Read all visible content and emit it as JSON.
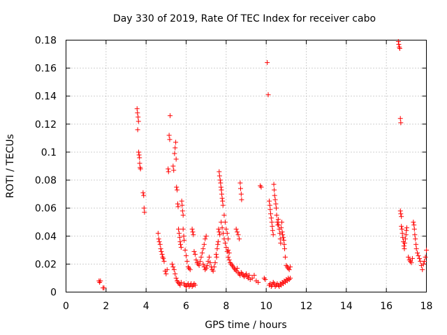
{
  "chart_data": {
    "type": "scatter",
    "title": "Day 330 of 2019, Rate Of TEC Index for receiver cabo",
    "xlabel": "GPS time / hours",
    "ylabel": "ROTI / TECUs",
    "xlim": [
      0,
      18
    ],
    "ylim": [
      0,
      0.18
    ],
    "x_ticks": [
      "0",
      "2",
      "4",
      "6",
      "8",
      "10",
      "12",
      "14",
      "16",
      "18"
    ],
    "y_ticks": [
      "0",
      "0.02",
      "0.04",
      "0.06",
      "0.08",
      "0.1",
      "0.12",
      "0.14",
      "0.16",
      "0.18"
    ],
    "grid": true,
    "marker": "+",
    "color": "#ff0000",
    "series": [
      {
        "points": [
          [
            1.65,
            0.008
          ],
          [
            1.68,
            0.007
          ],
          [
            1.72,
            0.008
          ],
          [
            1.85,
            0.003
          ],
          [
            1.9,
            0.003
          ],
          [
            3.55,
            0.131
          ],
          [
            3.57,
            0.128
          ],
          [
            3.6,
            0.125
          ],
          [
            3.62,
            0.122
          ],
          [
            3.58,
            0.116
          ],
          [
            3.63,
            0.1
          ],
          [
            3.65,
            0.098
          ],
          [
            3.67,
            0.096
          ],
          [
            3.68,
            0.092
          ],
          [
            3.7,
            0.089
          ],
          [
            3.72,
            0.088
          ],
          [
            3.85,
            0.071
          ],
          [
            3.88,
            0.069
          ],
          [
            3.9,
            0.06
          ],
          [
            3.92,
            0.057
          ],
          [
            4.6,
            0.042
          ],
          [
            4.63,
            0.038
          ],
          [
            4.66,
            0.036
          ],
          [
            4.7,
            0.034
          ],
          [
            4.73,
            0.031
          ],
          [
            4.76,
            0.029
          ],
          [
            4.8,
            0.027
          ],
          [
            4.83,
            0.025
          ],
          [
            4.86,
            0.024
          ],
          [
            4.9,
            0.022
          ],
          [
            4.95,
            0.015
          ],
          [
            5.0,
            0.013
          ],
          [
            5.05,
            0.016
          ],
          [
            5.1,
            0.088
          ],
          [
            5.12,
            0.086
          ],
          [
            5.15,
            0.112
          ],
          [
            5.18,
            0.109
          ],
          [
            5.2,
            0.126
          ],
          [
            5.3,
            0.02
          ],
          [
            5.35,
            0.018
          ],
          [
            5.4,
            0.016
          ],
          [
            5.45,
            0.013
          ],
          [
            5.5,
            0.01
          ],
          [
            5.55,
            0.008
          ],
          [
            5.6,
            0.007
          ],
          [
            5.65,
            0.006
          ],
          [
            5.7,
            0.005
          ],
          [
            5.75,
            0.007
          ],
          [
            5.35,
            0.09
          ],
          [
            5.38,
            0.087
          ],
          [
            5.42,
            0.099
          ],
          [
            5.45,
            0.103
          ],
          [
            5.48,
            0.107
          ],
          [
            5.5,
            0.095
          ],
          [
            5.52,
            0.075
          ],
          [
            5.55,
            0.073
          ],
          [
            5.58,
            0.063
          ],
          [
            5.6,
            0.061
          ],
          [
            5.62,
            0.045
          ],
          [
            5.65,
            0.042
          ],
          [
            5.68,
            0.039
          ],
          [
            5.7,
            0.036
          ],
          [
            5.72,
            0.034
          ],
          [
            5.75,
            0.032
          ],
          [
            5.78,
            0.065
          ],
          [
            5.8,
            0.062
          ],
          [
            5.82,
            0.058
          ],
          [
            5.85,
            0.055
          ],
          [
            5.85,
            0.045
          ],
          [
            5.88,
            0.04
          ],
          [
            5.9,
            0.037
          ],
          [
            5.95,
            0.03
          ],
          [
            6.0,
            0.026
          ],
          [
            6.05,
            0.022
          ],
          [
            6.1,
            0.018
          ],
          [
            6.15,
            0.017
          ],
          [
            6.2,
            0.016
          ],
          [
            5.9,
            0.006
          ],
          [
            5.95,
            0.005
          ],
          [
            6.0,
            0.004
          ],
          [
            6.05,
            0.005
          ],
          [
            6.1,
            0.006
          ],
          [
            6.15,
            0.004
          ],
          [
            6.2,
            0.005
          ],
          [
            6.25,
            0.006
          ],
          [
            6.3,
            0.004
          ],
          [
            6.35,
            0.005
          ],
          [
            6.4,
            0.006
          ],
          [
            6.45,
            0.005
          ],
          [
            6.3,
            0.045
          ],
          [
            6.33,
            0.043
          ],
          [
            6.36,
            0.041
          ],
          [
            6.4,
            0.029
          ],
          [
            6.45,
            0.027
          ],
          [
            6.5,
            0.023
          ],
          [
            6.55,
            0.021
          ],
          [
            6.6,
            0.02
          ],
          [
            6.65,
            0.019
          ],
          [
            6.7,
            0.022
          ],
          [
            6.75,
            0.025
          ],
          [
            6.8,
            0.028
          ],
          [
            6.85,
            0.031
          ],
          [
            6.9,
            0.034
          ],
          [
            6.95,
            0.038
          ],
          [
            7.0,
            0.04
          ],
          [
            6.85,
            0.02
          ],
          [
            6.9,
            0.018
          ],
          [
            6.95,
            0.016
          ],
          [
            7.0,
            0.017
          ],
          [
            7.05,
            0.019
          ],
          [
            7.1,
            0.022
          ],
          [
            7.15,
            0.025
          ],
          [
            7.2,
            0.021
          ],
          [
            7.25,
            0.018
          ],
          [
            7.3,
            0.016
          ],
          [
            7.35,
            0.015
          ],
          [
            7.4,
            0.018
          ],
          [
            7.45,
            0.021
          ],
          [
            7.5,
            0.027
          ],
          [
            7.52,
            0.025
          ],
          [
            7.55,
            0.031
          ],
          [
            7.58,
            0.034
          ],
          [
            7.6,
            0.036
          ],
          [
            7.62,
            0.045
          ],
          [
            7.65,
            0.043
          ],
          [
            7.68,
            0.041
          ],
          [
            7.65,
            0.086
          ],
          [
            7.67,
            0.083
          ],
          [
            7.7,
            0.08
          ],
          [
            7.72,
            0.078
          ],
          [
            7.74,
            0.075
          ],
          [
            7.76,
            0.073
          ],
          [
            7.78,
            0.07
          ],
          [
            7.8,
            0.067
          ],
          [
            7.82,
            0.065
          ],
          [
            7.84,
            0.062
          ],
          [
            7.75,
            0.05
          ],
          [
            7.8,
            0.046
          ],
          [
            7.85,
            0.042
          ],
          [
            7.9,
            0.038
          ],
          [
            7.95,
            0.035
          ],
          [
            8.0,
            0.032
          ],
          [
            8.05,
            0.029
          ],
          [
            8.1,
            0.03
          ],
          [
            8.15,
            0.028
          ],
          [
            7.9,
            0.055
          ],
          [
            7.95,
            0.05
          ],
          [
            8.0,
            0.045
          ],
          [
            8.05,
            0.042
          ],
          [
            8.1,
            0.038
          ],
          [
            8.1,
            0.025
          ],
          [
            8.15,
            0.023
          ],
          [
            8.2,
            0.021
          ],
          [
            8.25,
            0.02
          ],
          [
            8.3,
            0.019
          ],
          [
            8.35,
            0.018
          ],
          [
            8.4,
            0.017
          ],
          [
            8.45,
            0.016
          ],
          [
            8.5,
            0.015
          ],
          [
            8.55,
            0.017
          ],
          [
            8.6,
            0.014
          ],
          [
            8.65,
            0.013
          ],
          [
            8.7,
            0.012
          ],
          [
            8.75,
            0.014
          ],
          [
            8.8,
            0.013
          ],
          [
            8.85,
            0.012
          ],
          [
            8.9,
            0.011
          ],
          [
            8.95,
            0.012
          ],
          [
            9.0,
            0.013
          ],
          [
            9.05,
            0.011
          ],
          [
            9.1,
            0.01
          ],
          [
            9.15,
            0.012
          ],
          [
            9.2,
            0.009
          ],
          [
            8.5,
            0.045
          ],
          [
            8.55,
            0.043
          ],
          [
            8.6,
            0.041
          ],
          [
            8.65,
            0.038
          ],
          [
            8.7,
            0.078
          ],
          [
            8.72,
            0.074
          ],
          [
            8.75,
            0.07
          ],
          [
            8.77,
            0.066
          ],
          [
            9.3,
            0.01
          ],
          [
            9.4,
            0.012
          ],
          [
            9.5,
            0.008
          ],
          [
            9.6,
            0.007
          ],
          [
            9.7,
            0.076
          ],
          [
            9.75,
            0.075
          ],
          [
            9.9,
            0.01
          ],
          [
            9.95,
            0.009
          ],
          [
            10.05,
            0.164
          ],
          [
            10.1,
            0.141
          ],
          [
            10.15,
            0.065
          ],
          [
            10.18,
            0.062
          ],
          [
            10.2,
            0.059
          ],
          [
            10.22,
            0.056
          ],
          [
            10.25,
            0.053
          ],
          [
            10.28,
            0.05
          ],
          [
            10.3,
            0.047
          ],
          [
            10.32,
            0.044
          ],
          [
            10.35,
            0.041
          ],
          [
            10.38,
            0.077
          ],
          [
            10.4,
            0.073
          ],
          [
            10.42,
            0.069
          ],
          [
            10.45,
            0.066
          ],
          [
            10.48,
            0.063
          ],
          [
            10.5,
            0.06
          ],
          [
            10.52,
            0.055
          ],
          [
            10.55,
            0.05
          ],
          [
            10.58,
            0.048
          ],
          [
            10.6,
            0.052
          ],
          [
            10.62,
            0.048
          ],
          [
            10.65,
            0.045
          ],
          [
            10.68,
            0.042
          ],
          [
            10.7,
            0.038
          ],
          [
            10.72,
            0.035
          ],
          [
            10.75,
            0.046
          ],
          [
            10.78,
            0.05
          ],
          [
            10.8,
            0.043
          ],
          [
            10.82,
            0.041
          ],
          [
            10.85,
            0.039
          ],
          [
            10.88,
            0.037
          ],
          [
            10.9,
            0.034
          ],
          [
            10.92,
            0.031
          ],
          [
            10.95,
            0.025
          ],
          [
            11.0,
            0.019
          ],
          [
            11.05,
            0.018
          ],
          [
            11.1,
            0.017
          ],
          [
            11.15,
            0.016
          ],
          [
            11.2,
            0.018
          ],
          [
            10.15,
            0.005
          ],
          [
            10.2,
            0.006
          ],
          [
            10.25,
            0.004
          ],
          [
            10.3,
            0.005
          ],
          [
            10.35,
            0.007
          ],
          [
            10.4,
            0.006
          ],
          [
            10.45,
            0.004
          ],
          [
            10.5,
            0.005
          ],
          [
            10.55,
            0.006
          ],
          [
            10.6,
            0.005
          ],
          [
            10.65,
            0.004
          ],
          [
            10.7,
            0.006
          ],
          [
            10.75,
            0.005
          ],
          [
            10.8,
            0.007
          ],
          [
            10.85,
            0.006
          ],
          [
            10.9,
            0.008
          ],
          [
            10.95,
            0.007
          ],
          [
            11.0,
            0.009
          ],
          [
            11.05,
            0.008
          ],
          [
            11.1,
            0.01
          ],
          [
            11.15,
            0.009
          ],
          [
            11.2,
            0.01
          ],
          [
            16.6,
            0.179
          ],
          [
            16.62,
            0.177
          ],
          [
            16.65,
            0.175
          ],
          [
            16.67,
            0.174
          ],
          [
            16.7,
            0.124
          ],
          [
            16.72,
            0.121
          ],
          [
            16.7,
            0.058
          ],
          [
            16.72,
            0.056
          ],
          [
            16.75,
            0.054
          ],
          [
            16.75,
            0.047
          ],
          [
            16.78,
            0.045
          ],
          [
            16.8,
            0.042
          ],
          [
            16.82,
            0.039
          ],
          [
            16.85,
            0.036
          ],
          [
            16.88,
            0.033
          ],
          [
            16.9,
            0.031
          ],
          [
            16.92,
            0.035
          ],
          [
            16.95,
            0.038
          ],
          [
            16.98,
            0.041
          ],
          [
            17.0,
            0.044
          ],
          [
            17.02,
            0.046
          ],
          [
            17.1,
            0.025
          ],
          [
            17.15,
            0.023
          ],
          [
            17.2,
            0.022
          ],
          [
            17.25,
            0.021
          ],
          [
            17.3,
            0.024
          ],
          [
            17.35,
            0.05
          ],
          [
            17.38,
            0.048
          ],
          [
            17.4,
            0.045
          ],
          [
            17.42,
            0.041
          ],
          [
            17.45,
            0.038
          ],
          [
            17.48,
            0.034
          ],
          [
            17.5,
            0.031
          ],
          [
            17.55,
            0.028
          ],
          [
            17.6,
            0.026
          ],
          [
            17.65,
            0.024
          ],
          [
            17.7,
            0.022
          ],
          [
            17.75,
            0.019
          ],
          [
            17.8,
            0.016
          ],
          [
            17.85,
            0.02
          ],
          [
            17.9,
            0.022
          ],
          [
            17.95,
            0.025
          ],
          [
            18.0,
            0.03
          ]
        ]
      }
    ]
  }
}
